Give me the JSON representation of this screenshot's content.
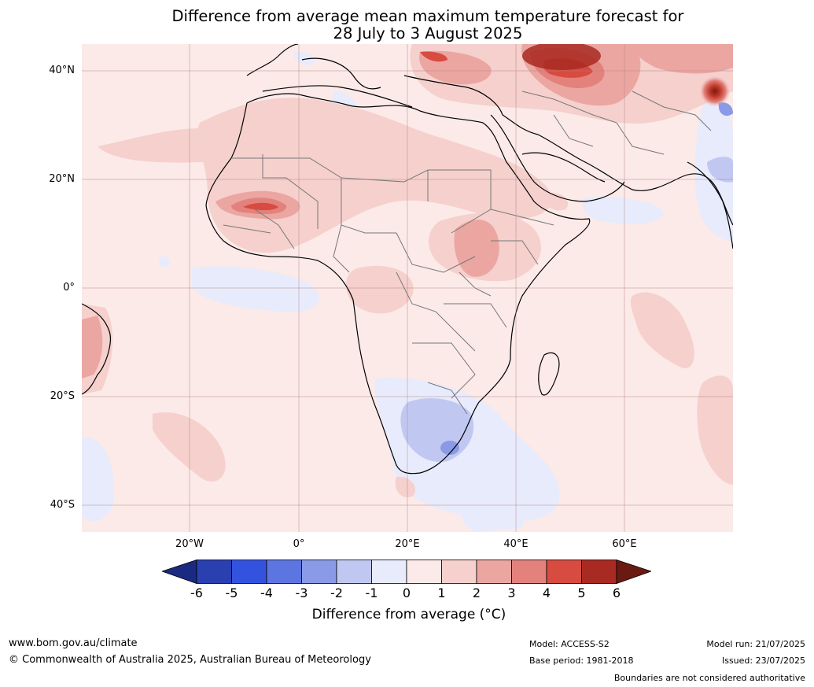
{
  "title": {
    "line1": "Difference from average mean maximum temperature forecast for",
    "line2": "28 July to 3 August 2025"
  },
  "map": {
    "lat_labels": [
      "40°N",
      "20°N",
      "0°",
      "20°S",
      "40°S"
    ],
    "lon_labels": [
      "20°W",
      "0°",
      "20°E",
      "40°E",
      "60°E"
    ]
  },
  "colorbar": {
    "ticks": [
      "-6",
      "-5",
      "-4",
      "-3",
      "-2",
      "-1",
      "0",
      "1",
      "2",
      "3",
      "4",
      "5",
      "6"
    ],
    "label": "Difference from average (°C)",
    "colors": [
      "#1a2a80",
      "#2a3fb0",
      "#3352de",
      "#5c75e0",
      "#8a9ae6",
      "#c0c8f2",
      "#e8ebfb",
      "#fbeae8",
      "#f5d0cd",
      "#eba6a2",
      "#e3827c",
      "#d74b40",
      "#a82a22",
      "#6b1a12"
    ]
  },
  "footer": {
    "website": "www.bom.gov.au/climate",
    "copyright": "© Commonwealth of Australia 2025, Australian Bureau of Meteorology",
    "model": "Model: ACCESS-S2",
    "base_period": "Base period: 1981-2018",
    "model_run": "Model run: 21/07/2025",
    "issued": "Issued: 23/07/2025",
    "disclaimer": "Boundaries are not considered authoritative"
  }
}
